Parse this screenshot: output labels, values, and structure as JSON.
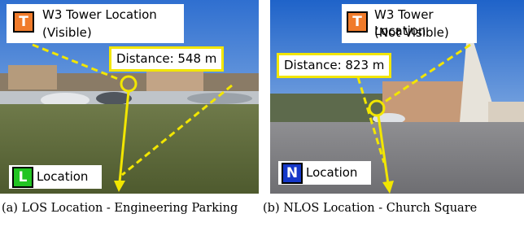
{
  "panels": [
    {
      "tower_badge": "T",
      "tower_label": "W3 Tower Location",
      "tower_status": "(Visible)",
      "distance": "Distance: 548 m",
      "location_badge": "L",
      "location_label": "Location",
      "caption": "(a) LOS Location - Engineering Parking"
    },
    {
      "tower_badge": "T",
      "tower_label": "W3 Tower Location",
      "tower_status": "(Not Visible)",
      "distance": "Distance: 823 m",
      "location_badge": "N",
      "location_label": "Location",
      "caption": "(b) NLOS Location - Church Square"
    }
  ]
}
